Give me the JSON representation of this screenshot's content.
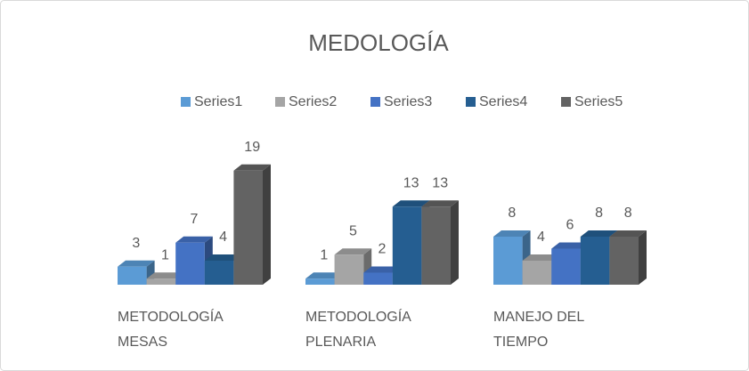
{
  "chart_data": {
    "type": "bar3d",
    "title": "MEDOLOGÍA",
    "categories": [
      "METODOLOGÍA MESAS",
      "METODOLOGÍA PLENARIA",
      "MANEJO DEL TIEMPO"
    ],
    "series": [
      {
        "name": "Series1",
        "color": "#5b9bd5",
        "values": [
          3,
          1,
          8
        ]
      },
      {
        "name": "Series2",
        "color": "#a5a5a5",
        "values": [
          1,
          5,
          4
        ]
      },
      {
        "name": "Series3",
        "color": "#4472c4",
        "values": [
          7,
          2,
          6
        ]
      },
      {
        "name": "Series4",
        "color": "#255e91",
        "values": [
          4,
          13,
          8
        ]
      },
      {
        "name": "Series5",
        "color": "#636363",
        "values": [
          19,
          13,
          8
        ]
      }
    ],
    "ylim": [
      0,
      20
    ],
    "legend": "top"
  }
}
